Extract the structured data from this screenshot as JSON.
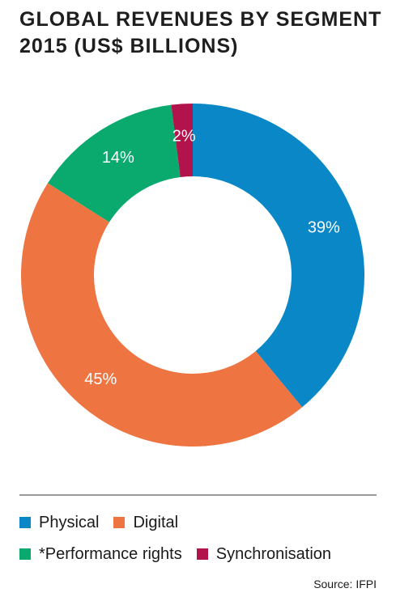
{
  "title_line1": "GLOBAL REVENUES BY SEGMENT",
  "title_line2": "2015 (US$ BILLIONS)",
  "source": "Source: IFPI",
  "chart_data": {
    "type": "pie",
    "title": "GLOBAL REVENUES BY SEGMENT 2015 (US$ BILLIONS)",
    "donut": true,
    "slices": [
      {
        "name": "Physical",
        "value": 39,
        "label": "39%",
        "color": "#0a87c6"
      },
      {
        "name": "Digital",
        "value": 45,
        "label": "45%",
        "color": "#ee7442"
      },
      {
        "name": "*Performance rights",
        "value": 14,
        "label": "14%",
        "color": "#0aaa6e"
      },
      {
        "name": "Synchronisation",
        "value": 2,
        "label": "2%",
        "color": "#b2134b"
      }
    ],
    "legend_position": "bottom"
  },
  "legend": {
    "row1": [
      {
        "label": "Physical",
        "color": "#0a87c6"
      },
      {
        "label": "Digital",
        "color": "#ee7442"
      }
    ],
    "row2": [
      {
        "label": "*Performance rights",
        "color": "#0aaa6e"
      },
      {
        "label": "Synchronisation",
        "color": "#b2134b"
      }
    ]
  }
}
